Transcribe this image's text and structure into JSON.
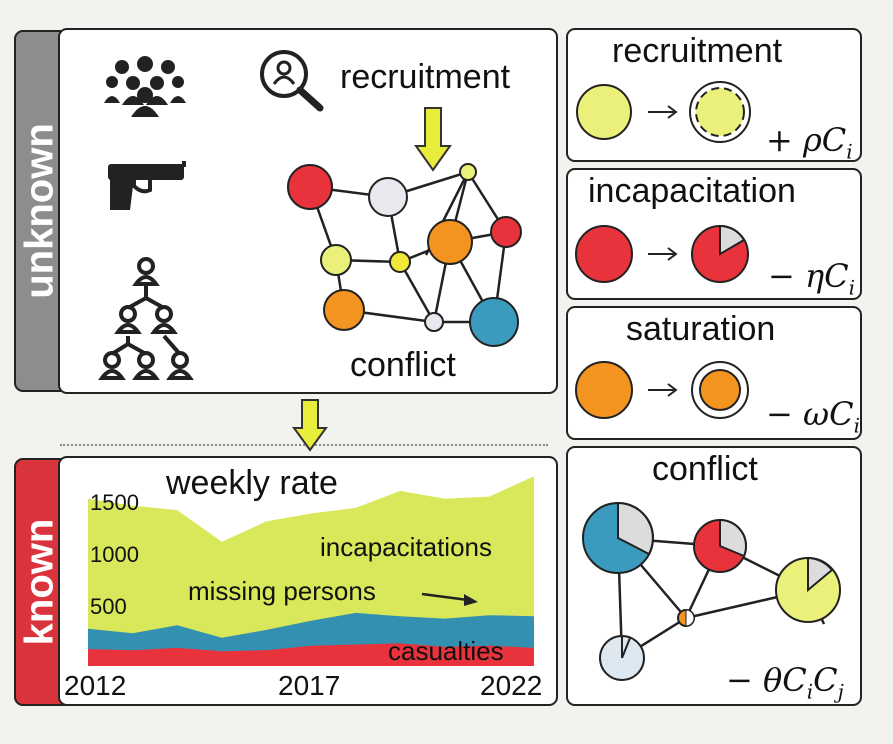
{
  "unknown_panel": {
    "tab_label": "unknown",
    "recruitment_label": "recruitment",
    "conflict_label": "conflict",
    "icons": [
      "crowd-icon",
      "handgun-icon",
      "hierarchy-icon",
      "search-person-icon"
    ]
  },
  "known_panel": {
    "tab_label": "known",
    "chart_data": {
      "type": "area",
      "title": "weekly rate",
      "x_ticks": [
        "2012",
        "2017",
        "2022"
      ],
      "y_ticks": [
        "1500",
        "1000",
        "500"
      ],
      "ylim": [
        0,
        1700
      ],
      "x": [
        2012,
        2013,
        2014,
        2015,
        2016,
        2017,
        2018,
        2019,
        2020,
        2021,
        2022
      ],
      "series": [
        {
          "name": "casualties",
          "cumulative": [
            150,
            140,
            160,
            130,
            140,
            180,
            190,
            200,
            170,
            180,
            160
          ],
          "color": "#e8333c"
        },
        {
          "name": "missing persons",
          "cumulative": [
            330,
            290,
            360,
            250,
            320,
            400,
            470,
            440,
            420,
            450,
            440
          ],
          "color": "#3490b0"
        },
        {
          "name": "incapacitations",
          "cumulative": [
            1480,
            1420,
            1380,
            1100,
            1280,
            1350,
            1400,
            1550,
            1480,
            1500,
            1680
          ],
          "color": "#d8e85a"
        }
      ],
      "annotations": [
        "incapacitations",
        "missing persons",
        "casualties"
      ]
    }
  },
  "mechanisms": [
    {
      "title": "recruitment",
      "formula": "+ ρC",
      "sub": "i"
    },
    {
      "title": "incapacitation",
      "formula": "− ηC",
      "sub": "i"
    },
    {
      "title": "saturation",
      "formula": "− ωC",
      "sub": "i"
    },
    {
      "title": "conflict",
      "formula": "− θC",
      "sub": "i",
      "formula2": "C",
      "sub2": "j"
    }
  ],
  "colors": {
    "yellow": "#eaf07a",
    "red": "#e8333c",
    "orange": "#f39420",
    "blue": "#3b9bbf",
    "arrow_yellow": "#e8ec3a",
    "known_tab": "#d9333b",
    "unknown_tab": "#8d8d8d"
  }
}
